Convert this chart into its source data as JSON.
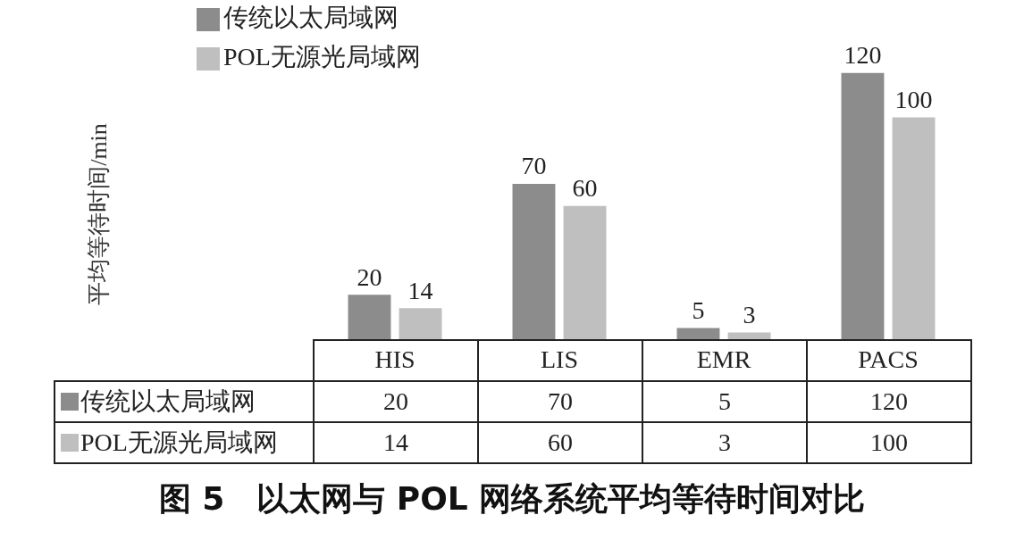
{
  "chart_data": [
    {
      "type": "bar",
      "title": "图 5　以太网与 POL 网络系统平均等待时间对比",
      "annotations": [
        "平均等待时间/min"
      ],
      "categories": [
        "HIS",
        "LIS",
        "EMR",
        "PACS"
      ],
      "series": [
        {
          "name": "传统以太局域网",
          "color": "#8c8c8c",
          "values": [
            20,
            70,
            5,
            120
          ],
          "value_labels": [
            "20",
            "70",
            "5",
            "120"
          ]
        },
        {
          "name": "POL无源光局域网",
          "color": "#bfbfbf",
          "values": [
            14,
            60,
            3,
            100
          ],
          "value_labels": [
            "14",
            "60",
            "3",
            "100"
          ]
        }
      ],
      "legend": "top left"
    },
    {
      "type": "other",
      "annotations": [
        "20",
        "70",
        "5",
        "120",
        "14",
        "60",
        "3",
        "100"
      ]
    }
  ]
}
